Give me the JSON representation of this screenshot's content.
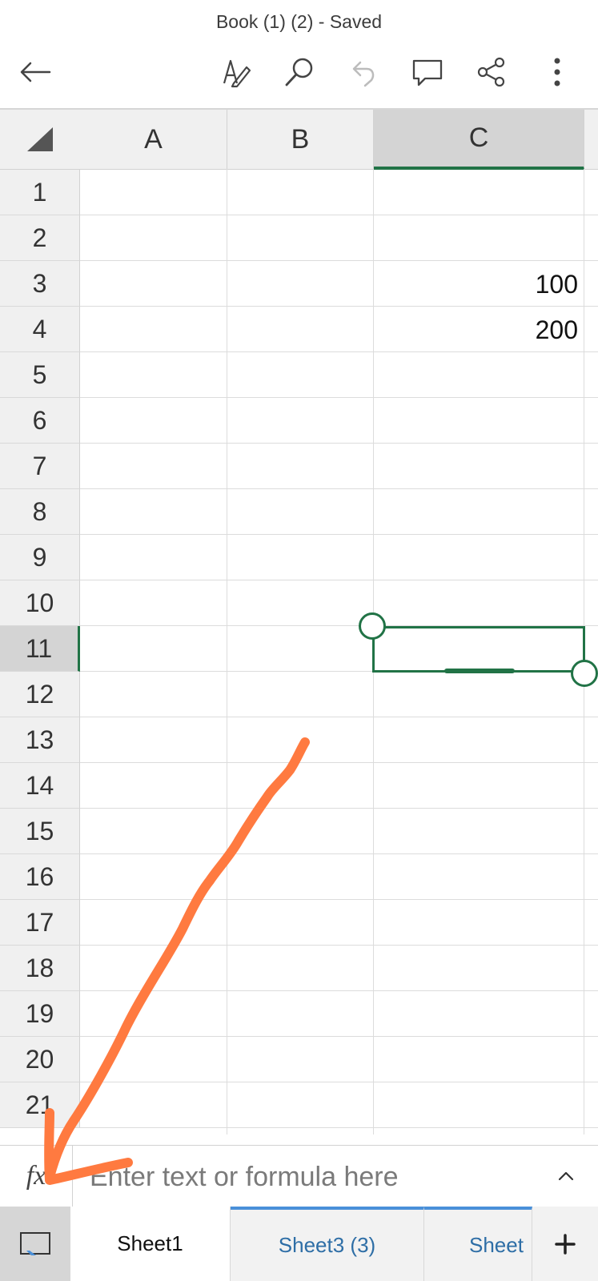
{
  "header": {
    "title": "Book (1) (2) - Saved",
    "icons": [
      "back-arrow-icon",
      "draw-pen-icon",
      "search-icon",
      "undo-icon",
      "comment-icon",
      "share-icon",
      "more-icon"
    ]
  },
  "sheet": {
    "columns": [
      "A",
      "B",
      "C"
    ],
    "selected_column": "C",
    "rows": [
      "1",
      "2",
      "3",
      "4",
      "5",
      "6",
      "7",
      "8",
      "9",
      "10",
      "11",
      "12",
      "13",
      "14",
      "15",
      "16",
      "17",
      "18",
      "19",
      "20",
      "21"
    ],
    "selected_row": "11",
    "cells": [
      {
        "ref": "C3",
        "value": "100"
      },
      {
        "ref": "C4",
        "value": "200"
      }
    ]
  },
  "formula_bar": {
    "fx_label": "fx",
    "placeholder": "Enter text or formula here"
  },
  "tabs": {
    "items": [
      {
        "label": "Sheet1",
        "active": true
      },
      {
        "label": "Sheet3 (3)",
        "active": false
      },
      {
        "label": "Sheet",
        "active": false
      }
    ],
    "add_label": "+"
  },
  "annotation": {
    "color": "#FF7A40",
    "type": "arrow",
    "points_to": "fx"
  },
  "colors": {
    "accent": "#217346",
    "tab_blue": "#2E6EA6"
  }
}
